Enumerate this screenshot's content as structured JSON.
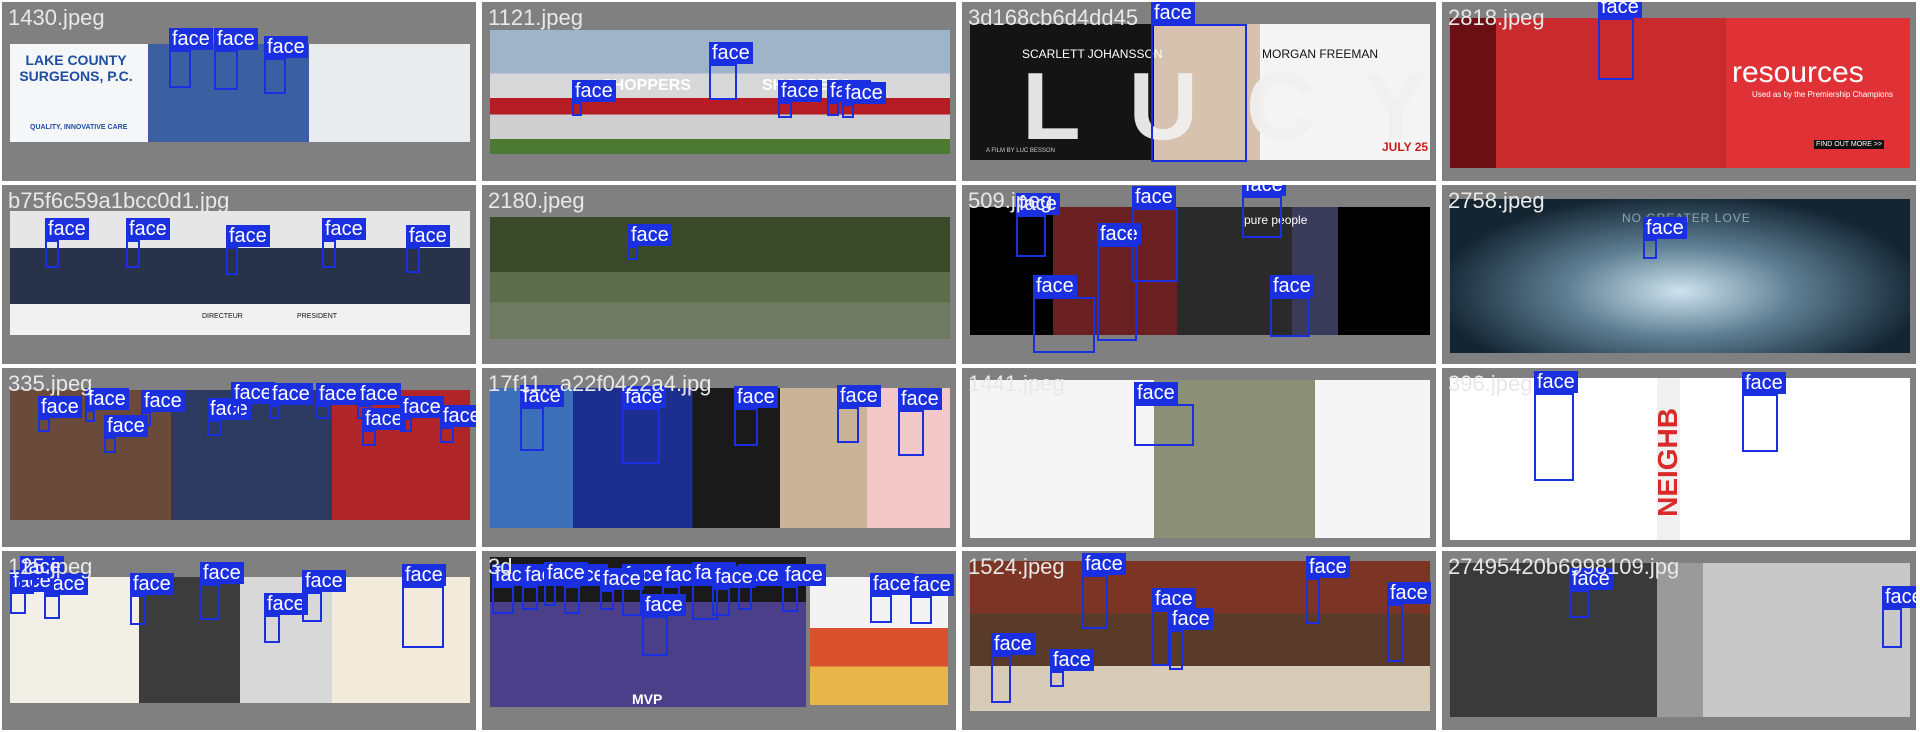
{
  "colors": {
    "box": "#1a2fe0",
    "tile_bg": "#808080",
    "filename_text": "#e8e8e8"
  },
  "tiles": [
    {
      "filename": "1430.jpeg",
      "detections": 3,
      "text": {
        "company": "LAKE COUNTY SURGEONS, P.C.",
        "tagline": "QUALITY, INNOVATIVE CARE"
      }
    },
    {
      "filename": "1121.jpeg",
      "detections": 5,
      "text": {
        "sign1": "SHOPPERS",
        "sign2": "SHOPPERS"
      }
    },
    {
      "filename": "3d168cb6d4dd45",
      "detections": 1,
      "text": {
        "actor1": "SCARLETT JOHANSSON",
        "actor2": "MORGAN FREEMAN",
        "title": "LUCY",
        "date": "JULY 25",
        "credit": "A FILM BY LUC BESSON"
      }
    },
    {
      "filename": "2818.jpeg",
      "detections": 1,
      "text": {
        "headline": "resources",
        "sub": "Used as by the Premiership Champions",
        "cta": "FIND OUT MORE >>"
      }
    },
    {
      "filename": "b75f6c59a1bcc0d1.jpg",
      "detections": 6,
      "text": {
        "placard": "PRESIDENT",
        "placard2": "DIRECTEUR"
      }
    },
    {
      "filename": "2180.jpeg",
      "detections": 1,
      "text": {}
    },
    {
      "filename": "509.jpeg",
      "detections": 5,
      "text": {
        "brand": "pure people"
      }
    },
    {
      "filename": "2758.jpeg",
      "detections": 1,
      "text": {
        "headline": "NO GREATER LOVE"
      }
    },
    {
      "filename": "335.jpeg",
      "detections": 12,
      "text": {}
    },
    {
      "filename": "17f11...a22f0422a4.jpg",
      "detections": 5,
      "text": {}
    },
    {
      "filename": "1441.jpeg",
      "detections": 1,
      "text": {}
    },
    {
      "filename": "396.jpeg",
      "detections": 2,
      "text": {
        "vertical": "NEIGHB"
      }
    },
    {
      "filename": "125.jpeg",
      "detections": 8,
      "text": {}
    },
    {
      "filename": "3d",
      "detections": 14,
      "text": {
        "shirt": "MVP"
      }
    },
    {
      "filename": "1524.jpeg",
      "detections": 7,
      "text": {}
    },
    {
      "filename": "27495420b6998109.jpg",
      "detections": 2,
      "text": {}
    }
  ],
  "label": "face"
}
